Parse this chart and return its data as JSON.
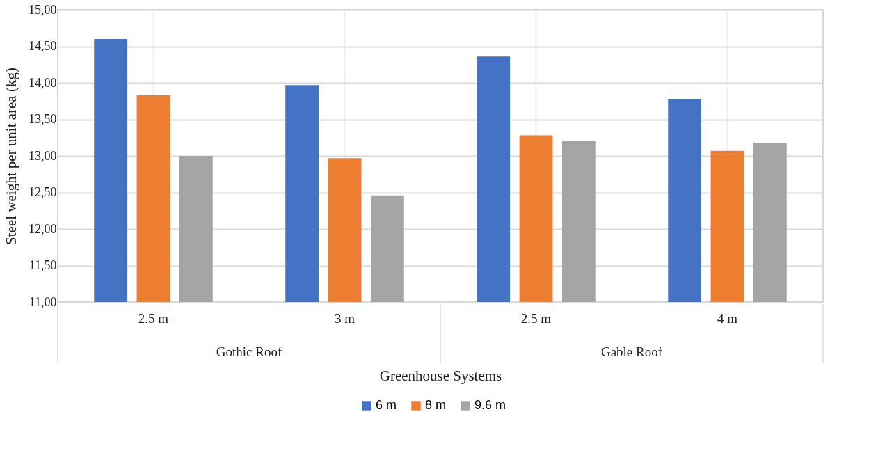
{
  "chart_data": {
    "type": "bar",
    "xlabel": "Greenhouse Systems",
    "ylabel": "Steel weight per unit area  (kg)",
    "categories": [
      "2.5 m",
      "3 m",
      "2.5 m",
      "4 m"
    ],
    "annotations": [
      "Gothic Roof",
      "Gable Roof"
    ],
    "series": [
      {
        "name": "6 m",
        "color": "#4472c4",
        "values": [
          14.6,
          13.97,
          14.36,
          13.78
        ]
      },
      {
        "name": "8 m",
        "color": "#ed7d31",
        "values": [
          13.83,
          12.97,
          13.28,
          13.07
        ]
      },
      {
        "name": "9.6 m",
        "color": "#a5a5a5",
        "values": [
          13.0,
          12.46,
          13.21,
          13.18
        ]
      }
    ],
    "ylim": [
      11,
      15
    ],
    "yticks": [
      {
        "value": 11,
        "label": "11,00"
      },
      {
        "value": 11.5,
        "label": "11,50"
      },
      {
        "value": 12,
        "label": "12,00"
      },
      {
        "value": 12.5,
        "label": "12,50"
      },
      {
        "value": 13,
        "label": "13,00"
      },
      {
        "value": 13.5,
        "label": "13,50"
      },
      {
        "value": 14,
        "label": "14,00"
      },
      {
        "value": 14.5,
        "label": "14,50"
      },
      {
        "value": 15,
        "label": "15,00"
      }
    ],
    "grid": true,
    "legend": "bottom"
  }
}
